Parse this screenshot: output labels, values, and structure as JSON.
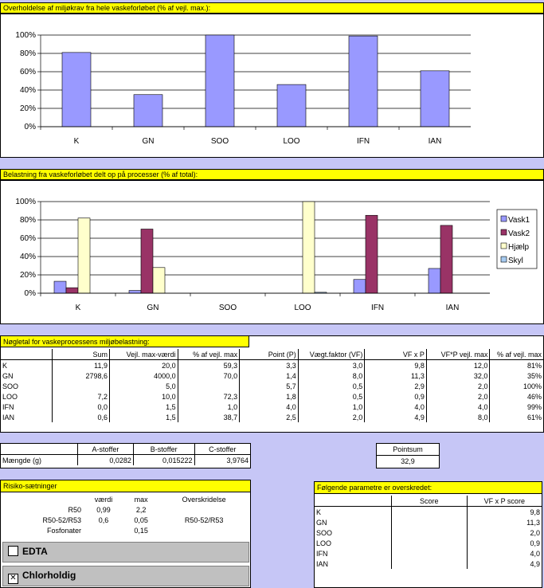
{
  "chart1": {
    "title": "Overholdelse af miljøkrav fra hele vaskeforløbet (% af vejl. max.):",
    "chart_data": {
      "type": "bar",
      "title": "",
      "categories": [
        "K",
        "GN",
        "SOO",
        "LOO",
        "IFN",
        "IAN"
      ],
      "values": [
        81,
        35,
        100,
        46,
        99,
        61
      ],
      "ylim": [
        0,
        100
      ],
      "yticks": [
        "0%",
        "20%",
        "40%",
        "60%",
        "80%",
        "100%"
      ],
      "colors": [
        "#9999ff"
      ]
    }
  },
  "chart2": {
    "title": "Belastning fra vaskeforløbet delt op på processer (% af total):",
    "chart_data": {
      "type": "bar",
      "title": "",
      "categories": [
        "K",
        "GN",
        "SOO",
        "LOO",
        "IFN",
        "IAN"
      ],
      "ylim": [
        0,
        100
      ],
      "yticks": [
        "0%",
        "20%",
        "40%",
        "60%",
        "80%",
        "100%"
      ],
      "legend_position": "right",
      "series": [
        {
          "name": "Vask1",
          "color": "#9999ff",
          "values": [
            13,
            3,
            0,
            0,
            15,
            27
          ]
        },
        {
          "name": "Vask2",
          "color": "#993366",
          "values": [
            6,
            70,
            0,
            0,
            85,
            74
          ]
        },
        {
          "name": "Hjælp",
          "color": "#ffffcc",
          "values": [
            82,
            28,
            0,
            100,
            0,
            0
          ]
        },
        {
          "name": "Skyl",
          "color": "#a6caf0",
          "values": [
            0,
            0,
            0,
            1,
            0,
            0
          ]
        }
      ]
    }
  },
  "noegletal": {
    "title": "Nøgletal for vaskeprocessens miljøbelastning:",
    "headers": [
      "",
      "Sum",
      "Vejl. max-værdi",
      "% af vejl. max",
      "Point (P)",
      "Vægt.faktor (VF)",
      "VF x P",
      "VF*P vejl. max",
      "% af vejl. max"
    ],
    "rows": [
      [
        "K",
        "11,9",
        "20,0",
        "59,3",
        "3,3",
        "3,0",
        "9,8",
        "12,0",
        "81%"
      ],
      [
        "GN",
        "2798,6",
        "4000,0",
        "70,0",
        "1,4",
        "8,0",
        "11,3",
        "32,0",
        "35%"
      ],
      [
        "SOO",
        "",
        "5,0",
        "",
        "5,7",
        "0,5",
        "2,9",
        "2,0",
        "100%"
      ],
      [
        "LOO",
        "7,2",
        "10,0",
        "72,3",
        "1,8",
        "0,5",
        "0,9",
        "2,0",
        "46%"
      ],
      [
        "IFN",
        "0,0",
        "1,5",
        "1,0",
        "4,0",
        "1,0",
        "4,0",
        "4,0",
        "99%"
      ],
      [
        "IAN",
        "0,6",
        "1,5",
        "38,7",
        "2,5",
        "2,0",
        "4,9",
        "8,0",
        "61%"
      ]
    ]
  },
  "stoffer": {
    "headers": [
      "",
      "A-stoffer",
      "B-stoffer",
      "C-stoffer"
    ],
    "row": [
      "Mængde (g)",
      "0,0282",
      "0,015222",
      "3,9764"
    ]
  },
  "pointsum": {
    "label": "Pointsum",
    "value": "32,9"
  },
  "risiko": {
    "title": "Risiko-sætninger",
    "headers": [
      "",
      "værdi",
      "max",
      "Overskridelse"
    ],
    "rows": [
      [
        "R50",
        "0,99",
        "2,2",
        ""
      ],
      [
        "R50-52/R53",
        "0,6",
        "0,05",
        "R50-52/R53"
      ],
      [
        "Fosfonater",
        "",
        "0,15",
        ""
      ]
    ]
  },
  "checkboxes": [
    {
      "label": "EDTA",
      "checked": false,
      "mark": ""
    },
    {
      "label": "Chlorholdig",
      "checked": true,
      "mark": "✕"
    }
  ],
  "overskredet": {
    "title": "Følgende parametre er overskredet:",
    "headers": [
      "",
      "Score",
      "VF x P score"
    ],
    "rows": [
      [
        "K",
        "",
        "9,8"
      ],
      [
        "GN",
        "",
        "11,3"
      ],
      [
        "SOO",
        "",
        "2,0"
      ],
      [
        "LOO",
        "",
        "0,9"
      ],
      [
        "IFN",
        "",
        "4,0"
      ],
      [
        "IAN",
        "",
        "4,9"
      ]
    ]
  }
}
